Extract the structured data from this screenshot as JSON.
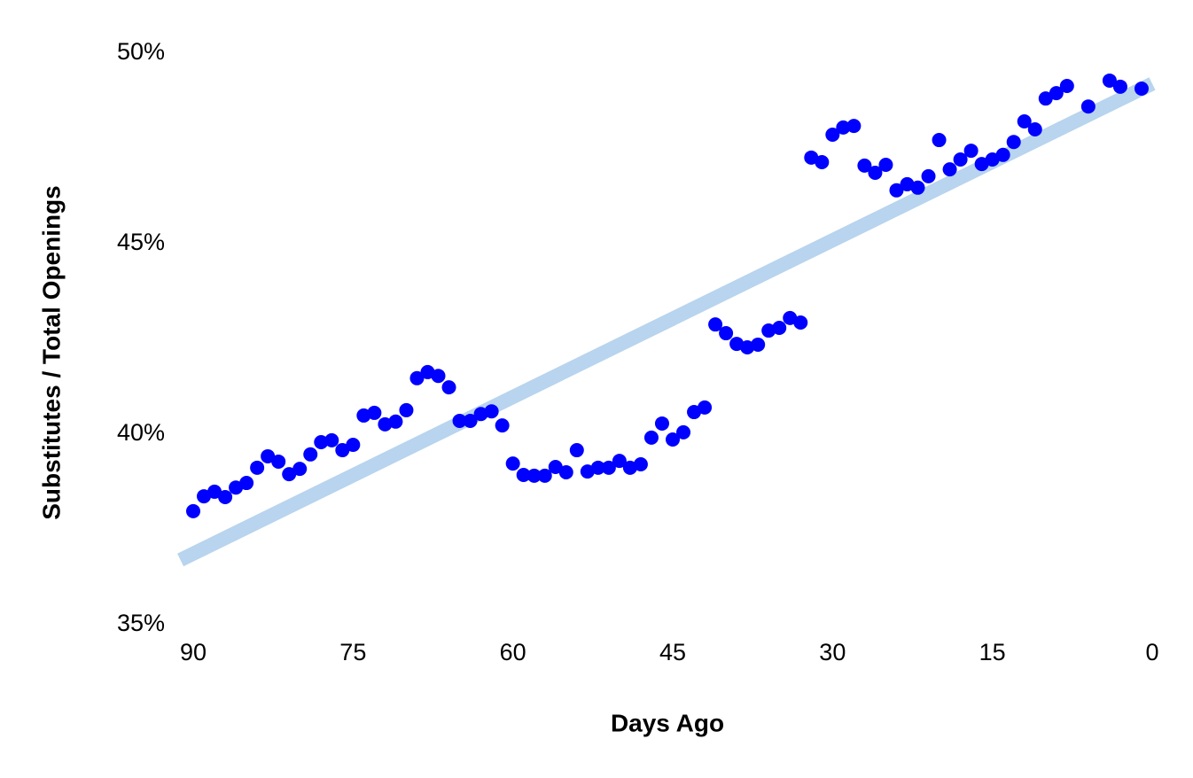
{
  "chart_data": {
    "type": "scatter",
    "x_label": "Days Ago",
    "y_label": "Substitutes / Total Openings",
    "x": [
      90,
      89,
      88,
      87,
      86,
      85,
      84,
      83,
      82,
      81,
      80,
      79,
      78,
      77,
      76,
      75,
      74,
      73,
      72,
      71,
      70,
      69,
      68,
      67,
      66,
      65,
      64,
      63,
      62,
      61,
      60,
      59,
      58,
      57,
      56,
      55,
      54,
      53,
      52,
      51,
      50,
      49,
      48,
      47,
      46,
      45,
      44,
      43,
      42,
      41,
      40,
      39,
      38,
      37,
      36,
      35,
      34,
      33,
      32,
      31,
      30,
      29,
      28,
      27,
      26,
      25,
      24,
      23,
      22,
      21,
      20,
      19,
      18,
      17,
      16,
      15,
      14,
      13,
      12,
      11,
      10,
      9,
      8,
      6,
      4,
      3,
      1
    ],
    "series": [
      {
        "color": "#0000ff",
        "values": [
          37.98,
          38.37,
          38.49,
          38.35,
          38.6,
          38.72,
          39.12,
          39.42,
          39.28,
          38.95,
          39.09,
          39.47,
          39.79,
          39.84,
          39.58,
          39.72,
          40.49,
          40.56,
          40.26,
          40.33,
          40.63,
          41.47,
          41.63,
          41.53,
          41.23,
          40.35,
          40.35,
          40.53,
          40.6,
          40.23,
          39.23,
          38.93,
          38.91,
          38.91,
          39.14,
          39.0,
          39.58,
          39.02,
          39.12,
          39.12,
          39.3,
          39.12,
          39.21,
          39.91,
          40.28,
          39.86,
          40.05,
          40.58,
          40.7,
          42.88,
          42.65,
          42.37,
          42.28,
          42.35,
          42.72,
          42.79,
          43.05,
          42.93,
          47.26,
          47.14,
          47.86,
          48.05,
          48.09,
          47.05,
          46.86,
          47.07,
          46.4,
          46.56,
          46.47,
          46.77,
          47.72,
          46.95,
          47.21,
          47.44,
          47.09,
          47.21,
          47.33,
          47.67,
          48.21,
          48.0,
          48.81,
          48.95,
          49.14,
          48.6,
          49.28,
          49.12,
          49.07
        ]
      }
    ],
    "trendline": {
      "color": "#b8d4ee",
      "x": [
        91.2,
        0
      ],
      "values": [
        36.7,
        49.2
      ]
    },
    "xlim": [
      90,
      0
    ],
    "xticks": [
      90,
      75,
      60,
      45,
      30,
      15,
      0
    ],
    "ylim": [
      35,
      50
    ],
    "yticks": [
      {
        "value": 35,
        "label": "35%"
      },
      {
        "value": 40,
        "label": "40%"
      },
      {
        "value": 45,
        "label": "45%"
      },
      {
        "value": 50,
        "label": "50%"
      }
    ],
    "grid": false
  }
}
